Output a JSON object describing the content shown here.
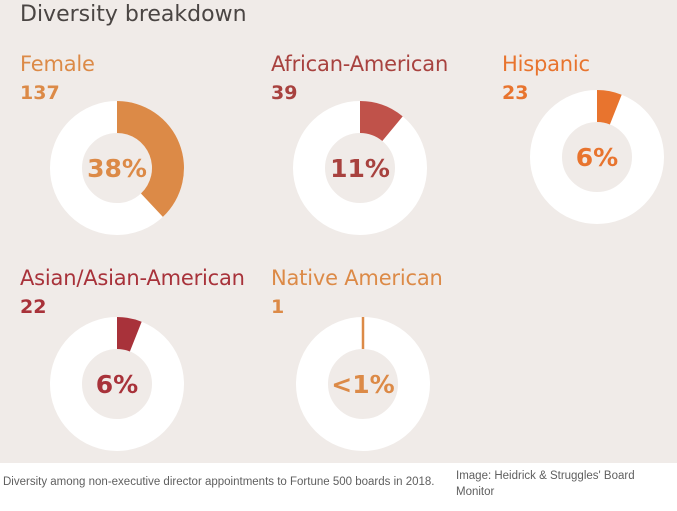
{
  "chart_data": {
    "type": "donut",
    "title": "Diversity breakdown",
    "items": [
      {
        "label": "Female",
        "count": "137",
        "value": 38,
        "pct_label": "38%",
        "color": "#dc8a47",
        "text_color": "#dc8a47"
      },
      {
        "label": "African-American",
        "count": "39",
        "value": 11,
        "pct_label": "11%",
        "color": "#c0524a",
        "text_color": "#a8423f"
      },
      {
        "label": "Hispanic",
        "count": "23",
        "value": 6,
        "pct_label": "6%",
        "color": "#e8742e",
        "text_color": "#e8742e"
      },
      {
        "label": "Asian/Asian-American",
        "count": "22",
        "value": 6,
        "pct_label": "6%",
        "color": "#a8323a",
        "text_color": "#a8323a"
      },
      {
        "label": "Native American",
        "count": "1",
        "value": 0.6,
        "pct_label": "<1%",
        "color": "#dc8a47",
        "text_color": "#dc8a47"
      }
    ],
    "ring_color": "#ffffff"
  },
  "caption": "Diversity among non-executive director appointments to Fortune 500 boards in 2018.",
  "credit": "Image: Heidrick & Struggles' Board Monitor"
}
